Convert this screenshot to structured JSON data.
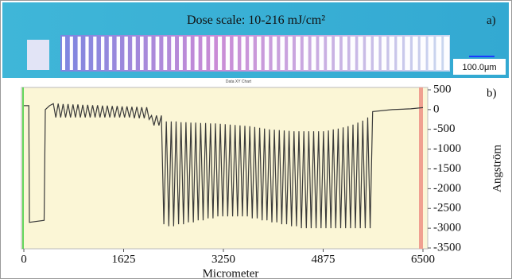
{
  "panel_a": {
    "title": "Dose scale: 10-216 mJ/cm²",
    "label": "a)",
    "scale_bar": "100.0μm"
  },
  "chart_data": {
    "type": "line",
    "subtitle": "Data XY Chart",
    "panel_label": "b)",
    "x_label": "Micrometer",
    "y_label": "Angström",
    "color": "#3a3a3a",
    "xlim": [
      0,
      6500
    ],
    "ylim": [
      -3500,
      500
    ],
    "xticks": [
      0,
      1625,
      3250,
      4875,
      6500
    ],
    "yticks": [
      500,
      0,
      -500,
      -1000,
      -1500,
      -2000,
      -2500,
      -3000,
      -3500
    ],
    "x": [
      0,
      80,
      90,
      330,
      350,
      420,
      480,
      520,
      560,
      600,
      640,
      680,
      720,
      760,
      800,
      840,
      880,
      920,
      960,
      1000,
      1040,
      1080,
      1120,
      1160,
      1200,
      1240,
      1280,
      1320,
      1360,
      1400,
      1440,
      1480,
      1520,
      1560,
      1600,
      1640,
      1680,
      1720,
      1760,
      1800,
      1840,
      1880,
      1920,
      1960,
      2000,
      2040,
      2080,
      2120,
      2160,
      2200,
      2240,
      2280,
      2320,
      2360,
      2400,
      2440,
      2480,
      2520,
      2560,
      2600,
      2640,
      2680,
      2720,
      2760,
      2800,
      2840,
      2880,
      2920,
      2960,
      3000,
      3040,
      3080,
      3120,
      3160,
      3200,
      3240,
      3280,
      3320,
      3360,
      3400,
      3440,
      3480,
      3520,
      3560,
      3600,
      3640,
      3680,
      3720,
      3760,
      3800,
      3840,
      3880,
      3920,
      3960,
      4000,
      4040,
      4080,
      4120,
      4160,
      4200,
      4240,
      4280,
      4320,
      4360,
      4400,
      4440,
      4480,
      4520,
      4560,
      4600,
      4640,
      4680,
      4720,
      4760,
      4800,
      4840,
      4880,
      4920,
      4960,
      5000,
      5040,
      5080,
      5120,
      5160,
      5200,
      5240,
      5280,
      5320,
      5360,
      5400,
      5440,
      5480,
      5520,
      5560,
      5600,
      5640,
      5680,
      6000,
      6300,
      6500
    ],
    "values": [
      100,
      100,
      -2850,
      -2800,
      0,
      100,
      150,
      -200,
      150,
      -200,
      140,
      -200,
      140,
      -200,
      130,
      -200,
      130,
      -200,
      120,
      -200,
      120,
      -200,
      110,
      -200,
      110,
      -200,
      100,
      -200,
      100,
      -200,
      90,
      -200,
      90,
      -200,
      80,
      -200,
      80,
      -200,
      70,
      -220,
      70,
      -220,
      60,
      -220,
      60,
      -250,
      -150,
      -400,
      -150,
      -400,
      -150,
      -2900,
      -300,
      -2950,
      -300,
      -2950,
      -300,
      -2900,
      -320,
      -2900,
      -320,
      -2850,
      -330,
      -2850,
      -330,
      -2800,
      -340,
      -2800,
      -340,
      -2750,
      -350,
      -2750,
      -350,
      -2700,
      -360,
      -2700,
      -370,
      -2700,
      -380,
      -2700,
      -390,
      -2700,
      -400,
      -2700,
      -410,
      -2700,
      -420,
      -2750,
      -440,
      -2750,
      -460,
      -2800,
      -480,
      -2800,
      -500,
      -2850,
      -510,
      -2850,
      -520,
      -2900,
      -530,
      -2900,
      -540,
      -2950,
      -550,
      -2950,
      -550,
      -3000,
      -550,
      -3000,
      -550,
      -3000,
      -550,
      -3000,
      -550,
      -3000,
      -550,
      -3000,
      -530,
      -3000,
      -500,
      -3000,
      -480,
      -3000,
      -450,
      -3000,
      -420,
      -3000,
      -380,
      -3000,
      -330,
      -3000,
      -280,
      -3000,
      -200,
      -3000,
      -50,
      0,
      20,
      50
    ]
  }
}
